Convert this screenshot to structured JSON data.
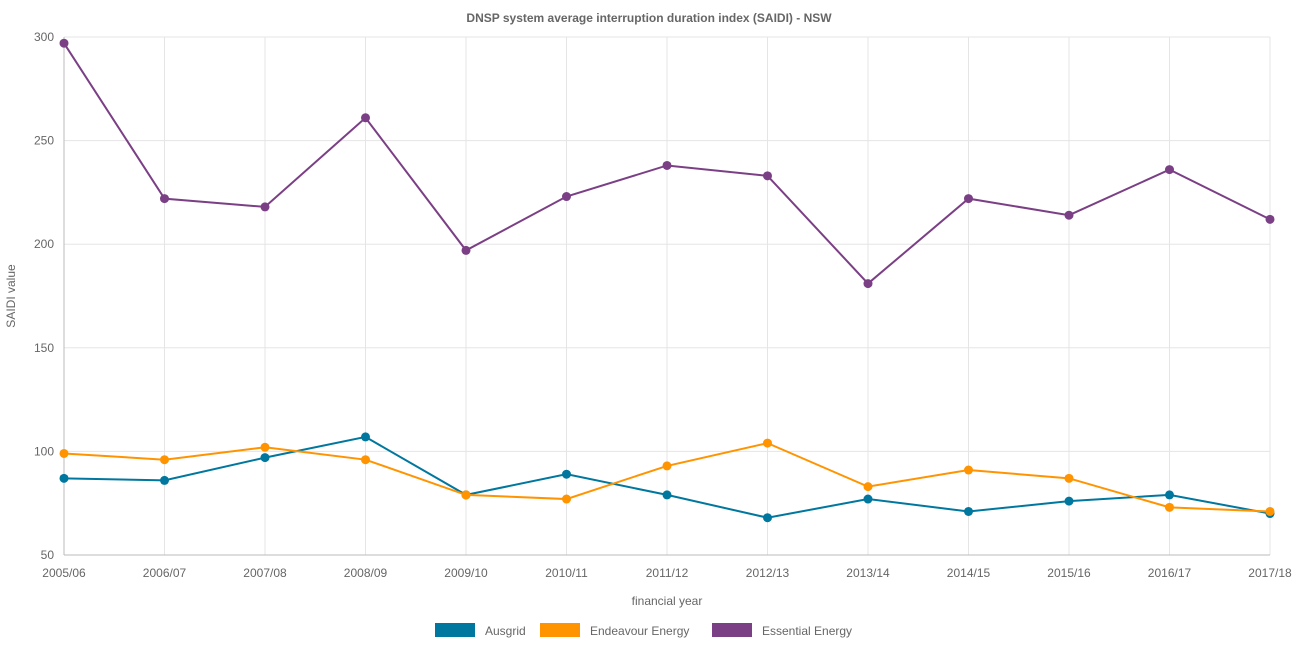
{
  "chart_data": {
    "type": "line",
    "title": "DNSP system average interruption duration index (SAIDI) - NSW",
    "xlabel": "financial year",
    "ylabel": "SAIDI value",
    "ylim": [
      50,
      300
    ],
    "yticks": [
      50,
      100,
      150,
      200,
      250,
      300
    ],
    "grid": true,
    "legend_position": "bottom",
    "categories": [
      "2005/06",
      "2006/07",
      "2007/08",
      "2008/09",
      "2009/10",
      "2010/11",
      "2011/12",
      "2012/13",
      "2013/14",
      "2014/15",
      "2015/16",
      "2016/17",
      "2017/18"
    ],
    "series": [
      {
        "name": "Ausgrid",
        "color": "#00779e",
        "values": [
          87,
          86,
          97,
          107,
          79,
          89,
          79,
          68,
          77,
          71,
          76,
          79,
          70
        ]
      },
      {
        "name": "Endeavour Energy",
        "color": "#ff9400",
        "values": [
          99,
          96,
          102,
          96,
          79,
          77,
          93,
          104,
          83,
          91,
          87,
          73,
          71
        ]
      },
      {
        "name": "Essential Energy",
        "color": "#7b3f85",
        "values": [
          297,
          222,
          218,
          261,
          197,
          223,
          238,
          233,
          181,
          222,
          214,
          236,
          212
        ]
      }
    ]
  }
}
